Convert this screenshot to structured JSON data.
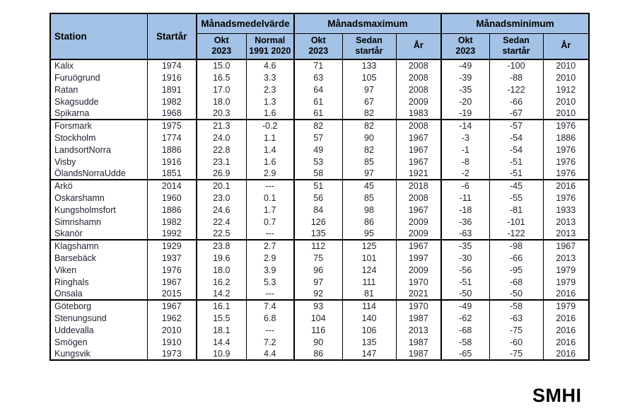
{
  "logo_text": "SMHI",
  "chart_data": {
    "type": "table",
    "title": "",
    "header": {
      "station": "Station",
      "start_year": "Startår",
      "groups": [
        {
          "label": "Månadsmedelvärde",
          "subcolumns": [
            "Okt\n2023",
            "Normal\n1991 2020"
          ]
        },
        {
          "label": "Månadsmaximum",
          "subcolumns": [
            "Okt\n2023",
            "Sedan\nstartår",
            "År"
          ]
        },
        {
          "label": "Månadsminimum",
          "subcolumns": [
            "Okt\n2023",
            "Sedan\nstartår",
            "År"
          ]
        }
      ]
    },
    "row_groups": [
      {
        "rows": [
          [
            "Kalix",
            "1974",
            "15.0",
            "4.6",
            "71",
            "133",
            "2008",
            "-49",
            "-100",
            "2010"
          ],
          [
            "Furuögrund",
            "1916",
            "16.5",
            "3.3",
            "63",
            "105",
            "2008",
            "-39",
            "-88",
            "2010"
          ],
          [
            "Ratan",
            "1891",
            "17.0",
            "2.3",
            "64",
            "97",
            "2008",
            "-35",
            "-122",
            "1912"
          ],
          [
            "Skagsudde",
            "1982",
            "18.0",
            "1.3",
            "61",
            "67",
            "2009",
            "-20",
            "-66",
            "2010"
          ],
          [
            "Spikarna",
            "1968",
            "20.3",
            "1.6",
            "61",
            "82",
            "1983",
            "-19",
            "-67",
            "2010"
          ]
        ]
      },
      {
        "rows": [
          [
            "Forsmark",
            "1975",
            "21.3",
            "-0.2",
            "82",
            "82",
            "2008",
            "-14",
            "-57",
            "1976"
          ],
          [
            "Stockholm",
            "1774",
            "24.0",
            "1.1",
            "57",
            "90",
            "1967",
            "-3",
            "-54",
            "1886"
          ],
          [
            "LandsortNorra",
            "1886",
            "22.8",
            "1.4",
            "49",
            "82",
            "1967",
            "-1",
            "-54",
            "1976"
          ],
          [
            "Visby",
            "1916",
            "23.1",
            "1.6",
            "53",
            "85",
            "1967",
            "-8",
            "-51",
            "1976"
          ],
          [
            "ÖlandsNorraUdde",
            "1851",
            "26.9",
            "2.9",
            "58",
            "97",
            "1921",
            "-2",
            "-51",
            "1976"
          ]
        ]
      },
      {
        "rows": [
          [
            "Arkö",
            "2014",
            "20.1",
            "---",
            "51",
            "45",
            "2018",
            "-6",
            "-45",
            "2016"
          ],
          [
            "Oskarshamn",
            "1960",
            "23.0",
            "0.1",
            "56",
            "85",
            "2008",
            "-11",
            "-55",
            "1976"
          ],
          [
            "Kungsholmsfort",
            "1886",
            "24.6",
            "1.7",
            "84",
            "98",
            "1967",
            "-18",
            "-81",
            "1933"
          ],
          [
            "Simrishamn",
            "1982",
            "22.4",
            "0.7",
            "126",
            "86",
            "2009",
            "-36",
            "-101",
            "2013"
          ],
          [
            "Skanör",
            "1992",
            "22.5",
            "---",
            "135",
            "95",
            "2009",
            "-63",
            "-122",
            "2013"
          ]
        ]
      },
      {
        "rows": [
          [
            "Klagshamn",
            "1929",
            "23.8",
            "2.7",
            "112",
            "125",
            "1967",
            "-35",
            "-98",
            "1967"
          ],
          [
            "Barsebäck",
            "1937",
            "19.6",
            "2.9",
            "75",
            "101",
            "1997",
            "-30",
            "-66",
            "2013"
          ],
          [
            "Viken",
            "1976",
            "18.0",
            "3.9",
            "96",
            "124",
            "2009",
            "-56",
            "-95",
            "1979"
          ],
          [
            "Ringhals",
            "1967",
            "16.2",
            "5.3",
            "97",
            "111",
            "1970",
            "-51",
            "-68",
            "1979"
          ],
          [
            "Onsala",
            "2015",
            "14.2",
            "---",
            "92",
            "81",
            "2021",
            "-50",
            "-50",
            "2016"
          ]
        ]
      },
      {
        "rows": [
          [
            "Göteborg",
            "1967",
            "16.1",
            "7.4",
            "93",
            "114",
            "1970",
            "-49",
            "-58",
            "1979"
          ],
          [
            "Stenungsund",
            "1962",
            "15.5",
            "6.8",
            "104",
            "140",
            "1987",
            "-62",
            "-63",
            "2016"
          ],
          [
            "Uddevalla",
            "2010",
            "18.1",
            "---",
            "116",
            "106",
            "2013",
            "-68",
            "-75",
            "2016"
          ],
          [
            "Smögen",
            "1910",
            "14.4",
            "7.2",
            "90",
            "135",
            "1987",
            "-58",
            "-60",
            "2016"
          ],
          [
            "Kungsvik",
            "1973",
            "10.9",
            "4.4",
            "86",
            "147",
            "1987",
            "-65",
            "-75",
            "2016"
          ]
        ]
      }
    ],
    "layout": {
      "header_bg_color": "#A4C2E6",
      "border_color": "#000000",
      "text_color": "#1c2130"
    }
  }
}
